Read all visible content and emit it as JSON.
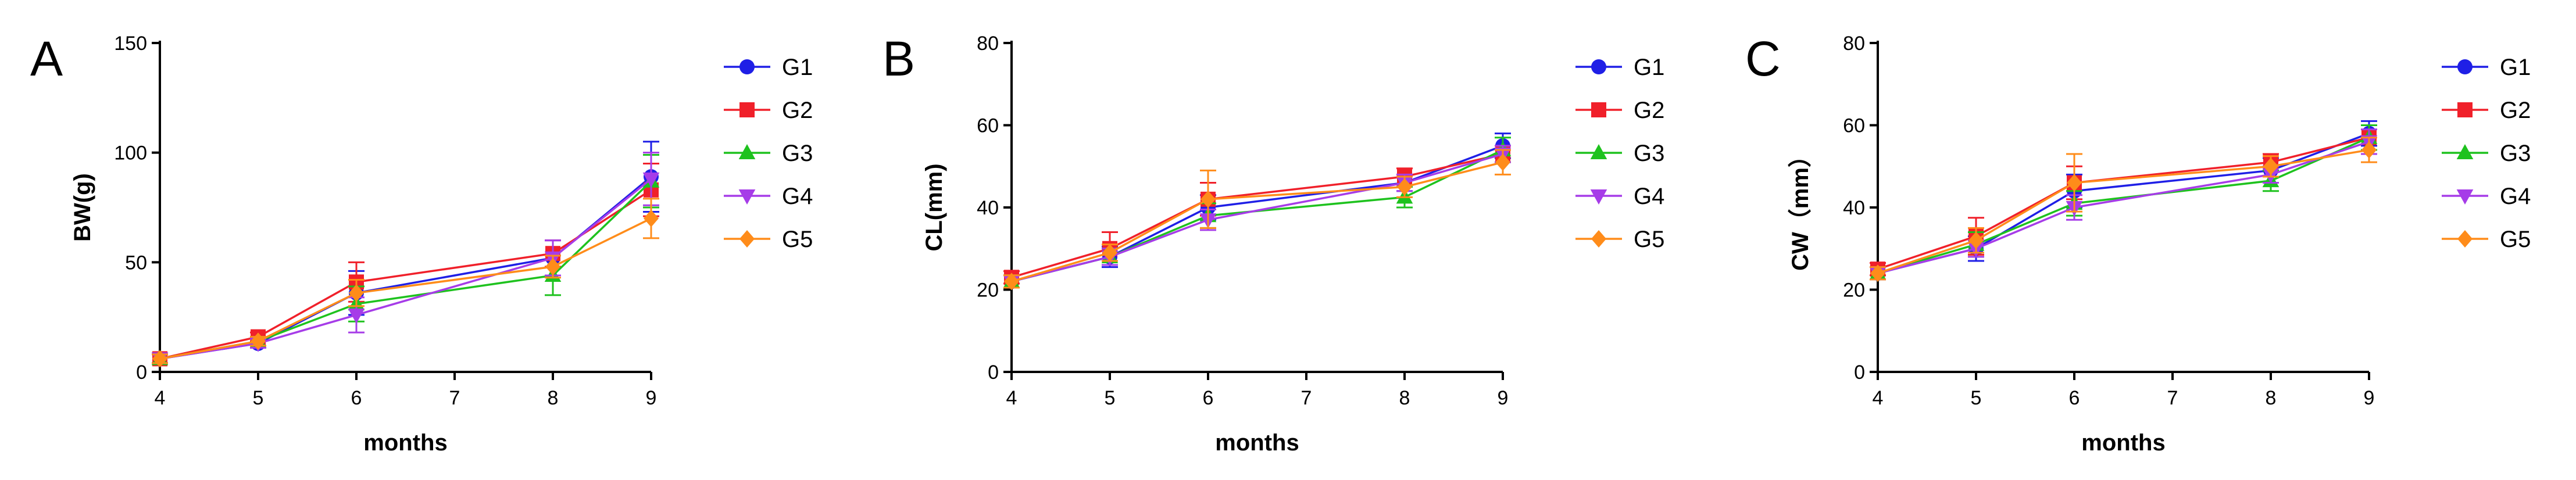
{
  "series_styles": [
    {
      "color": "#1f1fe6",
      "marker": "circle"
    },
    {
      "color": "#f0202a",
      "marker": "square"
    },
    {
      "color": "#1ec21e",
      "marker": "triangle-up"
    },
    {
      "color": "#a63ce8",
      "marker": "triangle-down"
    },
    {
      "color": "#ff8c1a",
      "marker": "diamond"
    }
  ],
  "chart_data": [
    {
      "panel": "A",
      "type": "line",
      "xlabel": "months",
      "ylabel": "BW(g)",
      "xlim": [
        4,
        9
      ],
      "ylim": [
        0,
        150
      ],
      "xticks": [
        4,
        5,
        6,
        7,
        8,
        9
      ],
      "yticks": [
        0,
        50,
        100,
        150
      ],
      "x": [
        4,
        5,
        6,
        8,
        9
      ],
      "legend_position": "right",
      "series": [
        {
          "name": "G1",
          "values": [
            6,
            13,
            36,
            52,
            89
          ],
          "errors": [
            2,
            2,
            10,
            8,
            16
          ]
        },
        {
          "name": "G2",
          "values": [
            6,
            16,
            41,
            54,
            83
          ],
          "errors": [
            2,
            2,
            9,
            6,
            12
          ]
        },
        {
          "name": "G3",
          "values": [
            6,
            14,
            31,
            44,
            87
          ],
          "errors": [
            2,
            2,
            8,
            9,
            12
          ]
        },
        {
          "name": "G4",
          "values": [
            6,
            13,
            26,
            52,
            88
          ],
          "errors": [
            2,
            2,
            8,
            8,
            12
          ]
        },
        {
          "name": "G5",
          "values": [
            6,
            14,
            36,
            48,
            70
          ],
          "errors": [
            2,
            2,
            6,
            5,
            9
          ]
        }
      ]
    },
    {
      "panel": "B",
      "type": "line",
      "xlabel": "months",
      "ylabel": "CL(mm)",
      "xlim": [
        4,
        9
      ],
      "ylim": [
        0,
        80
      ],
      "xticks": [
        4,
        5,
        6,
        7,
        8,
        9
      ],
      "yticks": [
        0,
        20,
        40,
        60,
        80
      ],
      "x": [
        4,
        5,
        6,
        8,
        9
      ],
      "legend_position": "right",
      "series": [
        {
          "name": "G1",
          "values": [
            22,
            28,
            40,
            46,
            55
          ],
          "errors": [
            1.5,
            2.5,
            3,
            2,
            3
          ]
        },
        {
          "name": "G2",
          "values": [
            23,
            30,
            42,
            47.5,
            53
          ],
          "errors": [
            1.5,
            4,
            4,
            2,
            2
          ]
        },
        {
          "name": "G3",
          "values": [
            22,
            28,
            38,
            42.5,
            54
          ],
          "errors": [
            1.5,
            2,
            3,
            2.5,
            3
          ]
        },
        {
          "name": "G4",
          "values": [
            22,
            28,
            37,
            46,
            53
          ],
          "errors": [
            1.5,
            2,
            2.5,
            2,
            2
          ]
        },
        {
          "name": "G5",
          "values": [
            22,
            29,
            42,
            45,
            51
          ],
          "errors": [
            1.5,
            2,
            7,
            2.5,
            3
          ]
        }
      ]
    },
    {
      "panel": "C",
      "type": "line",
      "xlabel": "months",
      "ylabel": "CW（mm）",
      "xlim": [
        4,
        9
      ],
      "ylim": [
        0,
        80
      ],
      "xticks": [
        4,
        5,
        6,
        7,
        8,
        9
      ],
      "yticks": [
        0,
        20,
        40,
        60,
        80
      ],
      "x": [
        4,
        5,
        6,
        8,
        9
      ],
      "legend_position": "right",
      "series": [
        {
          "name": "G1",
          "values": [
            24,
            30,
            44,
            49,
            58
          ],
          "errors": [
            1.5,
            3,
            4,
            3,
            3
          ]
        },
        {
          "name": "G2",
          "values": [
            25,
            33,
            46,
            51,
            57
          ],
          "errors": [
            1.5,
            4.5,
            4,
            2,
            3
          ]
        },
        {
          "name": "G3",
          "values": [
            24,
            31,
            41,
            46.5,
            57
          ],
          "errors": [
            1.5,
            3,
            3,
            2.5,
            3
          ]
        },
        {
          "name": "G4",
          "values": [
            24,
            30,
            40,
            48,
            56
          ],
          "errors": [
            1.5,
            2,
            3,
            2,
            3
          ]
        },
        {
          "name": "G5",
          "values": [
            24,
            32,
            46,
            50,
            54
          ],
          "errors": [
            1.5,
            3,
            7,
            2.5,
            3
          ]
        }
      ]
    }
  ]
}
